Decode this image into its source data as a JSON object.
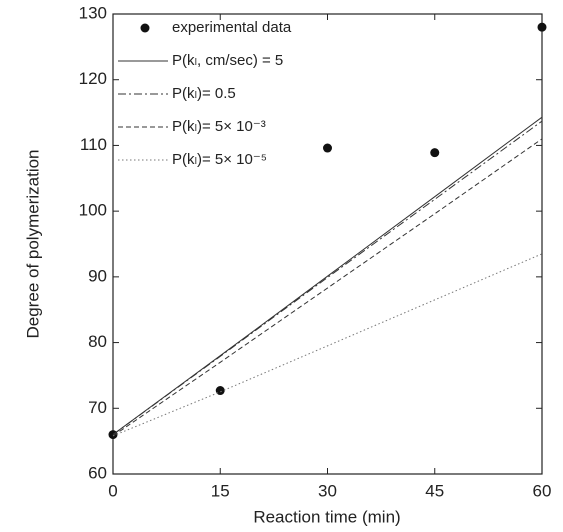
{
  "chart_data": {
    "type": "line",
    "x_label": "Reaction time (min)",
    "y_label": "Degree of polymerization",
    "xlim": [
      0,
      60
    ],
    "xticks": [
      0,
      15,
      30,
      45,
      60
    ],
    "ylim": [
      60,
      130
    ],
    "yticks": [
      60,
      70,
      80,
      90,
      100,
      110,
      120,
      130
    ],
    "legend_position": "upper left",
    "series": [
      {
        "name": "experimental data",
        "kind": "scatter",
        "color": "#111111",
        "x": [
          0,
          15,
          30,
          45,
          60
        ],
        "values": [
          66,
          72.7,
          109.6,
          108.9,
          128
        ]
      },
      {
        "name": "P(kₗ, cm/sec) = 5",
        "kind": "line",
        "dash": "solid",
        "color": "#333333",
        "x": [
          0,
          15,
          30,
          45,
          60
        ],
        "values": [
          66,
          78,
          90.1,
          102.2,
          114.3
        ]
      },
      {
        "name": "P(kₗ)= 0.5",
        "kind": "line",
        "dash": "dashdot",
        "color": "#333333",
        "x": [
          0,
          15,
          30,
          45,
          60
        ],
        "values": [
          66,
          77.9,
          89.9,
          101.8,
          113.7
        ]
      },
      {
        "name": "P(kₗ)= 5× 10⁻³",
        "kind": "line",
        "dash": "dashed",
        "color": "#333333",
        "x": [
          0,
          15,
          30,
          45,
          60
        ],
        "values": [
          65.8,
          77,
          88.3,
          99.6,
          111
        ]
      },
      {
        "name": "P(kₗ)= 5× 10⁻⁵",
        "kind": "line",
        "dash": "dotted",
        "color": "#777777",
        "x": [
          0,
          15,
          30,
          45,
          60
        ],
        "values": [
          65.8,
          72.5,
          79.5,
          86.5,
          93.5
        ]
      }
    ]
  }
}
